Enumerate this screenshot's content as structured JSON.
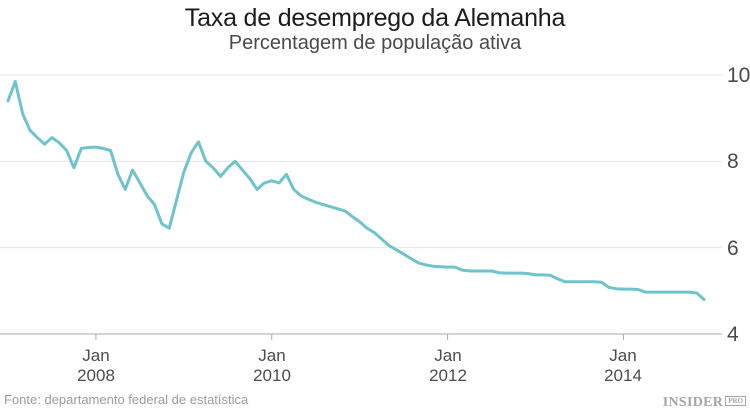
{
  "header": {
    "title": "Taxa de desemprego da Alemanha",
    "subtitle": "Percentagem de população ativa"
  },
  "axes": {
    "y_ticks": [
      {
        "label": "10",
        "value": 10
      },
      {
        "label": "8",
        "value": 8
      },
      {
        "label": "6",
        "value": 6
      },
      {
        "label": "4",
        "value": 4
      }
    ],
    "x_ticks": [
      {
        "line1": "Jan",
        "line2": "2008",
        "month_index": 12
      },
      {
        "line1": "Jan",
        "line2": "2010",
        "month_index": 36
      },
      {
        "line1": "Jan",
        "line2": "2012",
        "month_index": 60
      },
      {
        "line1": "Jan",
        "line2": "2014",
        "month_index": 84
      }
    ]
  },
  "footer": {
    "source": "Fonte: departamento federal de estatística",
    "brand": "INSIDER",
    "brand_pro": "PRO"
  },
  "colors": {
    "line": "#6fc3cb",
    "gridline": "#e4e4e4",
    "axis_line": "#ababab",
    "tick": "#ababab",
    "title": "#1c1c1c",
    "subtitle": "#4a4a4a",
    "axis_label": "#4a4a4a",
    "source": "#9c9c9c",
    "brand": "#a5a5a5",
    "background": "#ffffff"
  },
  "chart_data": {
    "type": "line",
    "title": "Taxa de desemprego da Alemanha",
    "subtitle": "Percentagem de população ativa",
    "unit": "percent of active population",
    "frequency": "monthly",
    "x_start": "2007-01",
    "x_end": "2014-12",
    "ylim": [
      4,
      10
    ],
    "y_gridlines": [
      10,
      8,
      6,
      4
    ],
    "x_tick_labels": [
      "Jan 2008",
      "Jan 2010",
      "Jan 2012",
      "Jan 2014"
    ],
    "legend": "none",
    "grid": "horizontal-only",
    "y_axis_side": "right",
    "series": [
      {
        "name": "Taxa de desemprego da Alemanha",
        "values": [
          9.4,
          9.85,
          9.1,
          8.72,
          8.55,
          8.4,
          8.55,
          8.43,
          8.25,
          7.85,
          8.3,
          8.32,
          8.33,
          8.3,
          8.25,
          7.7,
          7.35,
          7.8,
          7.5,
          7.2,
          7.0,
          6.55,
          6.45,
          7.1,
          7.75,
          8.2,
          8.45,
          8.0,
          7.85,
          7.65,
          7.85,
          8.0,
          7.8,
          7.6,
          7.35,
          7.5,
          7.55,
          7.5,
          7.7,
          7.35,
          7.2,
          7.12,
          7.05,
          7.0,
          6.95,
          6.9,
          6.85,
          6.72,
          6.6,
          6.45,
          6.35,
          6.2,
          6.05,
          5.95,
          5.85,
          5.75,
          5.65,
          5.6,
          5.57,
          5.56,
          5.55,
          5.55,
          5.48,
          5.46,
          5.46,
          5.46,
          5.46,
          5.42,
          5.41,
          5.41,
          5.41,
          5.4,
          5.37,
          5.37,
          5.36,
          5.28,
          5.21,
          5.21,
          5.21,
          5.21,
          5.21,
          5.2,
          5.08,
          5.05,
          5.04,
          5.04,
          5.03,
          4.97,
          4.97,
          4.97,
          4.97,
          4.97,
          4.97,
          4.97,
          4.95,
          4.8
        ]
      }
    ]
  }
}
